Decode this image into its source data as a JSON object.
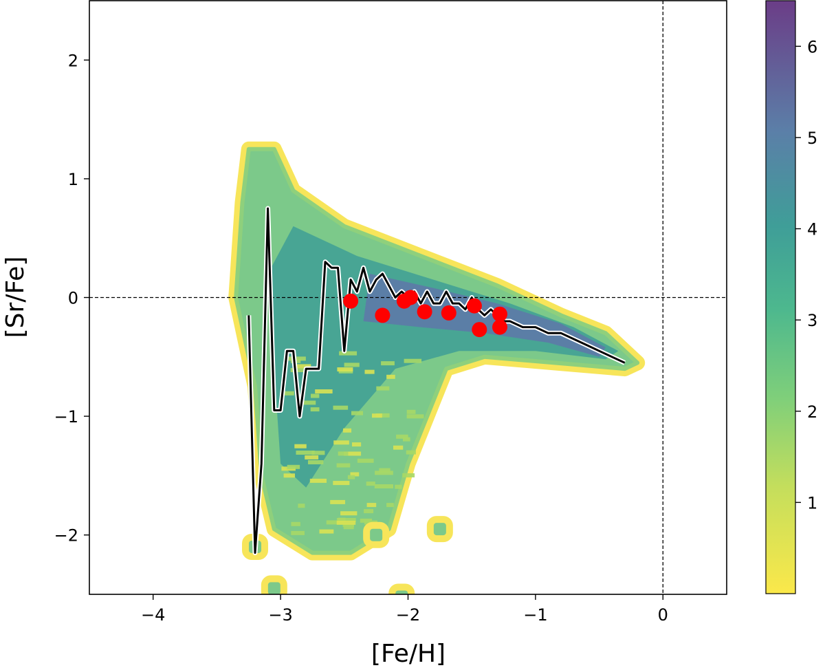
{
  "chart_data": {
    "type": "scatter",
    "xlabel": "[Fe/H]",
    "ylabel": "[Sr/Fe]",
    "xlim": [
      -4.5,
      0.5
    ],
    "ylim": [
      -2.5,
      2.5
    ],
    "xticks": [
      -4,
      -3,
      -2,
      -1,
      0
    ],
    "yticks": [
      -2,
      -1,
      0,
      1,
      2
    ],
    "xtick_labels": [
      "−4",
      "−3",
      "−2",
      "−1",
      "0"
    ],
    "ytick_labels": [
      "−2",
      "−1",
      "0",
      "1",
      "2"
    ],
    "reference_lines": {
      "x": 0,
      "y": 0,
      "style": "dashed"
    },
    "density": {
      "description_colormap": "viridis_r",
      "vmin": 0,
      "vmax": 6.5,
      "colorbar_ticks": [
        1,
        2,
        3,
        4,
        5,
        6
      ],
      "colorbar_tick_labels": [
        "1",
        "2",
        "3",
        "4",
        "5",
        "6"
      ],
      "region_upper": [
        [
          -3.25,
          1.25
        ],
        [
          -3.05,
          1.25
        ],
        [
          -2.9,
          0.9
        ],
        [
          -2.5,
          0.6
        ],
        [
          -1.9,
          0.35
        ],
        [
          -1.3,
          0.1
        ],
        [
          -0.8,
          -0.15
        ],
        [
          -0.45,
          -0.3
        ],
        [
          -0.2,
          -0.55
        ],
        [
          -0.3,
          -0.6
        ],
        [
          -0.85,
          -0.55
        ],
        [
          -1.4,
          -0.5
        ],
        [
          -1.7,
          -0.6
        ],
        [
          -1.85,
          -1.0
        ],
        [
          -2.0,
          -1.4
        ],
        [
          -2.15,
          -1.95
        ],
        [
          -2.45,
          -2.15
        ],
        [
          -2.75,
          -2.15
        ],
        [
          -3.05,
          -1.95
        ],
        [
          -3.15,
          -1.5
        ],
        [
          -3.2,
          -0.75
        ],
        [
          -3.35,
          0.0
        ],
        [
          -3.3,
          0.8
        ]
      ],
      "isolated_patches": [
        [
          -3.2,
          -2.1
        ],
        [
          -2.25,
          -2.0
        ],
        [
          -1.75,
          -1.95
        ],
        [
          -3.05,
          -2.45
        ],
        [
          -2.05,
          -2.52
        ]
      ]
    },
    "series": [
      {
        "name": "",
        "kind": "line",
        "color": "#000000",
        "x": [
          -3.25,
          -3.2,
          -3.15,
          -3.1,
          -3.05,
          -3.0,
          -2.95,
          -2.9,
          -2.85,
          -2.8,
          -2.75,
          -2.7,
          -2.65,
          -2.6,
          -2.55,
          -2.5,
          -2.45,
          -2.4,
          -2.35,
          -2.3,
          -2.25,
          -2.2,
          -2.15,
          -2.1,
          -2.05,
          -2.0,
          -1.95,
          -1.9,
          -1.85,
          -1.8,
          -1.75,
          -1.7,
          -1.65,
          -1.6,
          -1.55,
          -1.5,
          -1.45,
          -1.4,
          -1.35,
          -1.3,
          -1.25,
          -1.2,
          -1.1,
          -1.0,
          -0.9,
          -0.8,
          -0.7,
          -0.6,
          -0.5,
          -0.4,
          -0.3
        ],
        "y": [
          -0.15,
          -2.15,
          -1.4,
          0.75,
          -0.95,
          -0.95,
          -0.45,
          -0.45,
          -1.0,
          -0.6,
          -0.6,
          -0.6,
          0.3,
          0.25,
          0.25,
          -0.45,
          0.15,
          0.05,
          0.25,
          0.05,
          0.15,
          0.2,
          0.1,
          0.0,
          0.05,
          0.0,
          0.05,
          -0.05,
          0.05,
          -0.05,
          -0.05,
          0.05,
          -0.05,
          -0.05,
          -0.1,
          0.0,
          -0.1,
          -0.15,
          -0.1,
          -0.15,
          -0.2,
          -0.2,
          -0.25,
          -0.25,
          -0.3,
          -0.3,
          -0.35,
          -0.4,
          -0.45,
          -0.5,
          -0.55
        ]
      },
      {
        "name": "",
        "kind": "points",
        "color": "#ff0000",
        "points": [
          [
            -2.45,
            -0.03
          ],
          [
            -2.2,
            -0.15
          ],
          [
            -2.03,
            -0.03
          ],
          [
            -1.98,
            0.0
          ],
          [
            -1.87,
            -0.12
          ],
          [
            -1.68,
            -0.13
          ],
          [
            -1.48,
            -0.07
          ],
          [
            -1.44,
            -0.27
          ],
          [
            -1.28,
            -0.14
          ],
          [
            -1.28,
            -0.25
          ]
        ]
      }
    ]
  }
}
